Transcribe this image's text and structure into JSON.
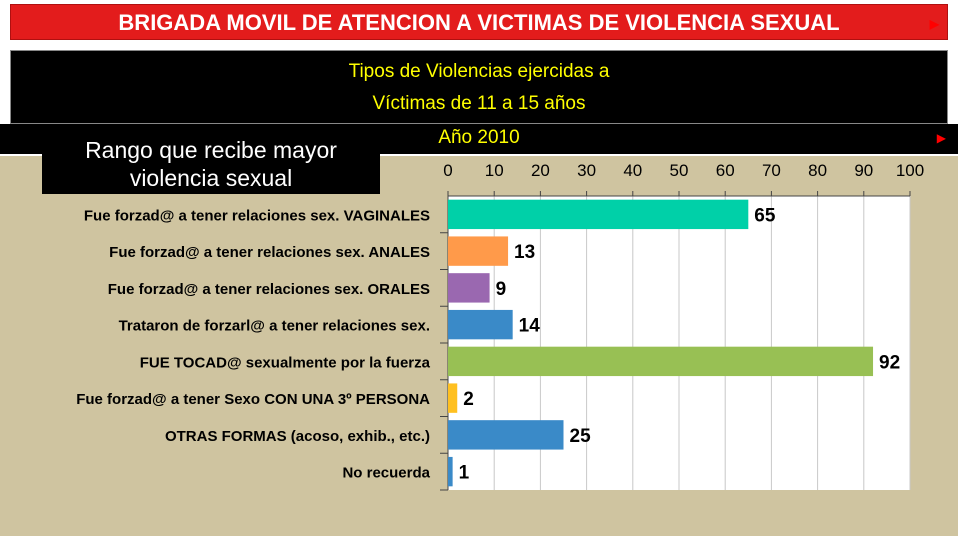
{
  "header": {
    "title": "BRIGADA MOVIL DE ATENCION A VICTIMAS DE VIOLENCIA SEXUAL",
    "arrow_icon": "red-triangle-right-icon"
  },
  "subtitle": {
    "line1": "Tipos de Violencias ejercidas a",
    "line2": "Víctimas  de 11 a 15 años",
    "year": "Año 2010"
  },
  "callout": {
    "line1": "Rango que recibe mayor",
    "line2": "violencia sexual"
  },
  "colors": {
    "title_bg": "#e31c1c",
    "subtitle_text": "#ffff00",
    "page_bg": "#cfc4a0"
  },
  "chart_data": {
    "type": "bar",
    "orientation": "horizontal",
    "categories": [
      "Fue forzad@ a tener relaciones sex. VAGINALES",
      "Fue forzad@ a tener relaciones sex. ANALES",
      "Fue forzad@ a tener relaciones sex. ORALES",
      "Trataron de forzarl@ a tener relaciones sex.",
      "FUE TOCAD@ sexualmente por la fuerza",
      "Fue forzad@ a tener Sexo CON UNA 3º PERSONA",
      "OTRAS FORMAS (acoso, exhib., etc.)",
      "No recuerda"
    ],
    "values": [
      65,
      13,
      9,
      14,
      92,
      2,
      25,
      1
    ],
    "bar_colors": [
      "#00d0a8",
      "#ff9a4a",
      "#9a68b0",
      "#3a8ac8",
      "#98c054",
      "#ffc020",
      "#3a8ac8",
      "#3a8ac8"
    ],
    "xlim": [
      0,
      100
    ],
    "x_ticks": [
      0,
      10,
      20,
      30,
      40,
      50,
      60,
      70,
      80,
      90,
      100
    ],
    "x_axis_position": "top",
    "grid": true,
    "legend": "none"
  }
}
